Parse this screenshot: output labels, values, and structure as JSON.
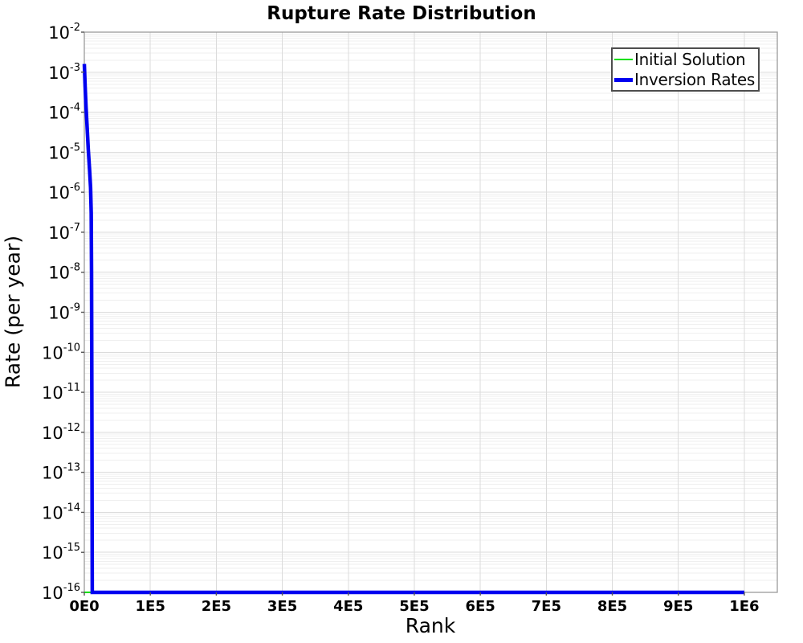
{
  "chart_data": {
    "type": "line",
    "title": "Rupture Rate Distribution",
    "xlabel": "Rank",
    "ylabel": "Rate (per year)",
    "x_axis": {
      "scale": "linear",
      "min": 0,
      "max": 1050000,
      "ticks": [
        {
          "value": 0,
          "label": "0E0"
        },
        {
          "value": 100000,
          "label": "1E5"
        },
        {
          "value": 200000,
          "label": "2E5"
        },
        {
          "value": 300000,
          "label": "3E5"
        },
        {
          "value": 400000,
          "label": "4E5"
        },
        {
          "value": 500000,
          "label": "5E5"
        },
        {
          "value": 600000,
          "label": "6E5"
        },
        {
          "value": 700000,
          "label": "7E5"
        },
        {
          "value": 800000,
          "label": "8E5"
        },
        {
          "value": 900000,
          "label": "9E5"
        },
        {
          "value": 1000000,
          "label": "1E6"
        }
      ]
    },
    "y_axis": {
      "scale": "log",
      "min": 1e-16,
      "max": 0.01,
      "tick_base": "10",
      "tick_exponents": [
        "-2",
        "-3",
        "-4",
        "-5",
        "-6",
        "-7",
        "-8",
        "-9",
        "-10",
        "-11",
        "-12",
        "-13",
        "-14",
        "-15",
        "-16"
      ]
    },
    "grid": {
      "major": true,
      "minor": true,
      "legend_position": "top-right"
    },
    "legend": {
      "items": [
        {
          "label": "Initial Solution",
          "color": "#00E000",
          "line_width": 2
        },
        {
          "label": "Inversion Rates",
          "color": "#0000F0",
          "line_width": 5
        }
      ]
    },
    "series": [
      {
        "name": "Initial Solution",
        "color": "#00E000",
        "width": 2,
        "points": [
          [
            0,
            1e-16
          ],
          [
            1000000,
            1e-16
          ]
        ]
      },
      {
        "name": "Inversion Rates",
        "color": "#0000F0",
        "width": 4.5,
        "points": [
          [
            0,
            0.0016
          ],
          [
            1200,
            0.00045
          ],
          [
            2500,
            0.00014
          ],
          [
            4000,
            5e-05
          ],
          [
            6000,
            1.2e-05
          ],
          [
            8000,
            3.5e-06
          ],
          [
            9500,
            1.3e-06
          ],
          [
            10500,
            3e-07
          ],
          [
            11000,
            1e-08
          ],
          [
            11500,
            1e-12
          ],
          [
            12000,
            1e-16
          ],
          [
            1000000,
            1e-16
          ]
        ]
      }
    ]
  },
  "colors": {
    "plot_border": "#9b9b9b",
    "grid_major": "#dbdbdb",
    "grid_minor": "#efefef",
    "tick_mark": "#555555",
    "tick_label": "#000000"
  }
}
